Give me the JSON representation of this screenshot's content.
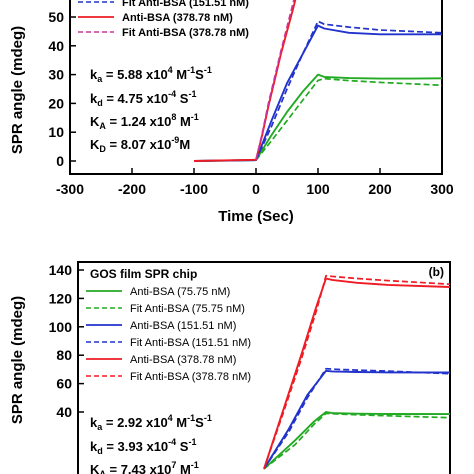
{
  "chart_data": [
    {
      "panel_label": "",
      "type": "line",
      "title": "",
      "xlabel": "Time (Sec)",
      "ylabel": "SPR angle (mdeg)",
      "xlim": [
        -300,
        300
      ],
      "ylim": [
        0,
        60
      ],
      "xticks": [
        -300,
        -200,
        -100,
        0,
        100,
        200,
        300
      ],
      "yticks": [
        0,
        10,
        20,
        30,
        40,
        50
      ],
      "legend_position": "top-left",
      "legend_visible": [
        {
          "label": "Fit Anti-BSA (151.51 nM)",
          "style": "dashed",
          "color": "#2233cc"
        },
        {
          "label": "Anti-BSA (378.78 nM)",
          "style": "solid",
          "color": "#ee1c24"
        },
        {
          "label": "Fit Anti-BSA (378.78 nM)",
          "style": "dashed",
          "color": "#cc3399"
        }
      ],
      "annotations": [
        {
          "prefix": "k",
          "sub": "a",
          "text": " = 5.88 x10",
          "sup": "4",
          "unit": " M",
          "unit_sup": "-1",
          "tail": "S",
          "tail_sup": "-1"
        },
        {
          "prefix": "k",
          "sub": "d",
          "text": " = 4.75 x10",
          "sup": "-4",
          "unit": " S",
          "unit_sup": "-1",
          "tail": "",
          "tail_sup": ""
        },
        {
          "prefix": "K",
          "sub": "A",
          "text": " = 1.24 x10",
          "sup": "8",
          "unit": " M",
          "unit_sup": "-1",
          "tail": "",
          "tail_sup": ""
        },
        {
          "prefix": "K",
          "sub": "D",
          "text": " = 8.07 x10",
          "sup": "-9",
          "unit": "M",
          "unit_sup": "",
          "tail": "",
          "tail_sup": ""
        }
      ],
      "series": [
        {
          "name": "Anti-BSA (75.75 nM)",
          "color": "#22aa22",
          "style": "solid",
          "points": [
            [
              -100,
              0
            ],
            [
              0,
              0.3
            ],
            [
              25,
              9
            ],
            [
              50,
              17
            ],
            [
              75,
              24
            ],
            [
              100,
              30
            ],
            [
              110,
              29.2
            ],
            [
              150,
              28.8
            ],
            [
              200,
              28.6
            ],
            [
              250,
              28.6
            ],
            [
              300,
              28.7
            ]
          ]
        },
        {
          "name": "Fit Anti-BSA (75.75 nM)",
          "color": "#22aa22",
          "style": "dashed",
          "points": [
            [
              0,
              0.3
            ],
            [
              25,
              7
            ],
            [
              50,
              14
            ],
            [
              75,
              21
            ],
            [
              100,
              28
            ],
            [
              110,
              28.6
            ],
            [
              150,
              27.9
            ],
            [
              200,
              27.3
            ],
            [
              250,
              26.8
            ],
            [
              300,
              26.3
            ]
          ]
        },
        {
          "name": "Anti-BSA (151.51 nM)",
          "color": "#2233cc",
          "style": "solid",
          "points": [
            [
              -100,
              0
            ],
            [
              0,
              0.3
            ],
            [
              25,
              14
            ],
            [
              50,
              27
            ],
            [
              75,
              37
            ],
            [
              100,
              47
            ],
            [
              110,
              46
            ],
            [
              150,
              44.5
            ],
            [
              200,
              44
            ],
            [
              250,
              44
            ],
            [
              300,
              44
            ]
          ]
        },
        {
          "name": "Fit Anti-BSA (151.51 nM)",
          "color": "#2233cc",
          "style": "dashed",
          "points": [
            [
              0,
              0.3
            ],
            [
              25,
              12
            ],
            [
              50,
              25
            ],
            [
              75,
              37
            ],
            [
              100,
              48.5
            ],
            [
              110,
              47.5
            ],
            [
              150,
              46.5
            ],
            [
              200,
              45.5
            ],
            [
              250,
              45
            ],
            [
              300,
              44.5
            ]
          ]
        },
        {
          "name": "Anti-BSA (378.78 nM)",
          "color": "#ee1c24",
          "style": "solid",
          "points": [
            [
              -100,
              0
            ],
            [
              0,
              0.4
            ],
            [
              10,
              9
            ],
            [
              20,
              19
            ],
            [
              30,
              28
            ],
            [
              40,
              37
            ],
            [
              50,
              45
            ],
            [
              60,
              53
            ],
            [
              68,
              60
            ]
          ]
        },
        {
          "name": "Fit Anti-BSA (378.78 nM)",
          "color": "#cc3399",
          "style": "dashed",
          "points": [
            [
              0,
              0.4
            ],
            [
              10,
              9.5
            ],
            [
              20,
              20
            ],
            [
              30,
              29
            ],
            [
              40,
              38
            ],
            [
              50,
              46.5
            ],
            [
              60,
              55
            ],
            [
              66,
              60
            ]
          ]
        }
      ]
    },
    {
      "panel_label": "(b)",
      "type": "line",
      "title": "GOS film SPR chip",
      "xlabel": "",
      "ylabel": "SPR angle (mdeg)",
      "xlim": [
        -300,
        300
      ],
      "ylim": [
        0,
        140
      ],
      "yticks": [
        40,
        60,
        80,
        100,
        120,
        140
      ],
      "legend_position": "top-left",
      "legend_visible": [
        {
          "label": "Anti-BSA (75.75 nM)",
          "style": "solid",
          "color": "#22aa22"
        },
        {
          "label": "Fit Anti-BSA (75.75 nM)",
          "style": "dashed",
          "color": "#22aa22"
        },
        {
          "label": "Anti-BSA (151.51 nM)",
          "style": "solid",
          "color": "#2233cc"
        },
        {
          "label": "Fit Anti-BSA (151.51 nM)",
          "style": "dashed",
          "color": "#2233cc"
        },
        {
          "label": "Anti-BSA (378.78 nM)",
          "style": "solid",
          "color": "#ee1c24"
        },
        {
          "label": "Fit Anti-BSA (378.78 nM)",
          "style": "dashed",
          "color": "#ee1c24"
        }
      ],
      "annotations": [
        {
          "prefix": "k",
          "sub": "a",
          "text": " = 2.92 x10",
          "sup": "4",
          "unit": " M",
          "unit_sup": "-1",
          "tail": "S",
          "tail_sup": "-1"
        },
        {
          "prefix": "k",
          "sub": "d",
          "text": " = 3.93 x10",
          "sup": "-4",
          "unit": " S",
          "unit_sup": "-1",
          "tail": "",
          "tail_sup": ""
        },
        {
          "prefix": "K",
          "sub": "A",
          "text": " = 7.43 x10",
          "sup": "7",
          "unit": " M",
          "unit_sup": "-1",
          "tail": "",
          "tail_sup": ""
        }
      ],
      "series": [
        {
          "name": "Anti-BSA (75.75 nM)",
          "color": "#22aa22",
          "style": "solid",
          "points": [
            [
              0,
              0
            ],
            [
              50,
              20
            ],
            [
              80,
              33
            ],
            [
              100,
              40
            ],
            [
              110,
              39.2
            ],
            [
              150,
              38.8
            ],
            [
              200,
              38.6
            ],
            [
              300,
              38.5
            ]
          ]
        },
        {
          "name": "Fit Anti-BSA (75.75 nM)",
          "color": "#22aa22",
          "style": "dashed",
          "points": [
            [
              0,
              0
            ],
            [
              50,
              17
            ],
            [
              80,
              31
            ],
            [
              100,
              39
            ],
            [
              110,
              38.8
            ],
            [
              150,
              38
            ],
            [
              200,
              37.3
            ],
            [
              300,
              36
            ]
          ]
        },
        {
          "name": "Anti-BSA (151.51 nM)",
          "color": "#2233cc",
          "style": "solid",
          "points": [
            [
              0,
              0
            ],
            [
              40,
              28
            ],
            [
              70,
              52
            ],
            [
              100,
              69
            ],
            [
              110,
              68.6
            ],
            [
              150,
              68.2
            ],
            [
              200,
              67.9
            ],
            [
              300,
              67.8
            ]
          ]
        },
        {
          "name": "Fit Anti-BSA (151.51 nM)",
          "color": "#2233cc",
          "style": "dashed",
          "points": [
            [
              0,
              0
            ],
            [
              40,
              26
            ],
            [
              70,
              50
            ],
            [
              100,
              70.5
            ],
            [
              110,
              70.2
            ],
            [
              150,
              69.5
            ],
            [
              200,
              68.8
            ],
            [
              300,
              67
            ]
          ]
        },
        {
          "name": "Anti-BSA (378.78 nM)",
          "color": "#ee1c24",
          "style": "solid",
          "points": [
            [
              0,
              0
            ],
            [
              30,
              40
            ],
            [
              60,
              80
            ],
            [
              85,
              115
            ],
            [
              100,
              134
            ],
            [
              110,
              133
            ],
            [
              150,
              131
            ],
            [
              200,
              129.5
            ],
            [
              300,
              128
            ]
          ]
        },
        {
          "name": "Fit Anti-BSA (378.78 nM)",
          "color": "#ee1c24",
          "style": "dashed",
          "points": [
            [
              0,
              0
            ],
            [
              30,
              38
            ],
            [
              60,
              77
            ],
            [
              85,
              112
            ],
            [
              100,
              136
            ],
            [
              110,
              135.5
            ],
            [
              150,
              134
            ],
            [
              200,
              132.5
            ],
            [
              300,
              130
            ]
          ]
        }
      ]
    }
  ]
}
